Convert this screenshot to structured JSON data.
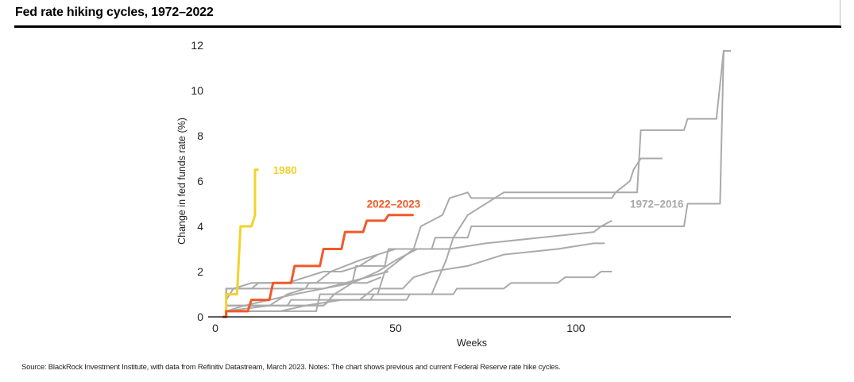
{
  "header": {
    "title": "Fed rate hiking cycles, 1972–2022"
  },
  "footer": {
    "source": "Source: BlackRock Investment Institute, with data from Refinitiv Datastream, March 2023. Notes: The chart shows previous and current Federal Reserve rate hike cycles."
  },
  "colors": {
    "historical": "#aaaaaa",
    "current": "#f05a28",
    "highlight_1980": "#f2d22e",
    "axis": "#000000",
    "tick_text": "#222222"
  },
  "chart_data": {
    "type": "line",
    "xlabel": "Weeks",
    "ylabel": "Change in fed funds rate (%)",
    "xlim": [
      -2,
      143
    ],
    "ylim": [
      0,
      12
    ],
    "x_ticks": [
      0,
      50,
      100
    ],
    "y_ticks": [
      0,
      2,
      4,
      6,
      8,
      10,
      12
    ],
    "grid": false,
    "annotations": [
      {
        "text": "1980",
        "series": "1980",
        "x": 16,
        "y": 6.5
      },
      {
        "text": "2022–2023",
        "series": "2022–2023",
        "x": 42,
        "y": 5.0
      },
      {
        "text": "1972–2016",
        "series": "1972–2016",
        "x": 115,
        "y": 5.0
      }
    ],
    "series": [
      {
        "name": "1980",
        "color_key": "highlight_1980",
        "x": [
          2,
          3,
          3,
          6,
          7,
          10,
          11,
          11,
          12
        ],
        "y": [
          0,
          0,
          1.0,
          1.0,
          4.0,
          4.0,
          4.5,
          6.5,
          6.5
        ]
      },
      {
        "name": "2022–2023",
        "color_key": "current",
        "x": [
          2,
          3,
          3,
          9,
          10,
          15,
          16,
          21,
          22,
          29,
          30,
          35,
          36,
          41,
          42,
          47,
          48,
          55
        ],
        "y": [
          0,
          0,
          0.25,
          0.25,
          0.75,
          0.75,
          1.5,
          1.5,
          2.25,
          2.25,
          3.0,
          3.0,
          3.75,
          3.75,
          4.25,
          4.25,
          4.5,
          4.5
        ]
      },
      {
        "group": "1972–2016",
        "color_key": "historical",
        "x": [
          2,
          3,
          3,
          25,
          26,
          38,
          39,
          47,
          48,
          60,
          61,
          70,
          71,
          130,
          131,
          140,
          141,
          143
        ],
        "y": [
          0,
          0,
          1.25,
          1.25,
          1.5,
          1.5,
          2.25,
          2.25,
          3.0,
          3.0,
          3.5,
          3.5,
          4.0,
          4.0,
          5.0,
          5.0,
          11.75,
          11.75
        ]
      },
      {
        "group": "1972–2016",
        "color_key": "historical",
        "x": [
          2,
          3,
          3,
          20,
          21,
          43,
          44,
          60,
          62,
          64,
          66,
          70,
          80,
          117,
          118,
          130,
          131,
          139,
          141,
          143
        ],
        "y": [
          0,
          0,
          0.5,
          0.5,
          0.75,
          0.75,
          1.0,
          1.0,
          1.75,
          2.5,
          3.5,
          4.5,
          5.5,
          5.5,
          8.25,
          8.25,
          8.75,
          8.75,
          11.75,
          11.75
        ]
      },
      {
        "group": "1972–2016",
        "color_key": "historical",
        "x": [
          2,
          3,
          3,
          28,
          29,
          45,
          47,
          55,
          57,
          63,
          65,
          70,
          71,
          110,
          111,
          115,
          116,
          118,
          122,
          124
        ],
        "y": [
          0,
          0,
          0.25,
          0.25,
          1.0,
          1.0,
          2.0,
          3.0,
          4.0,
          4.5,
          5.25,
          5.5,
          5.25,
          5.25,
          5.5,
          6.0,
          6.5,
          7.0,
          7.0,
          7.0
        ]
      },
      {
        "group": "1972–2016",
        "color_key": "historical",
        "x": [
          2,
          3,
          3,
          30,
          33,
          38,
          45,
          50,
          53,
          56,
          65,
          75,
          90,
          105,
          107,
          110
        ],
        "y": [
          0,
          0,
          0.5,
          0.5,
          1.0,
          1.5,
          2.0,
          2.5,
          2.75,
          3.0,
          3.0,
          3.25,
          3.5,
          3.75,
          4.0,
          4.25
        ]
      },
      {
        "group": "1972–2016",
        "color_key": "historical",
        "x": [
          2,
          3,
          3,
          30,
          32,
          40,
          44,
          52,
          55,
          60,
          70,
          80,
          95,
          105,
          108
        ],
        "y": [
          0,
          0,
          0.5,
          0.5,
          0.75,
          0.75,
          1.25,
          1.25,
          1.75,
          2.0,
          2.25,
          2.75,
          3.0,
          3.25,
          3.25
        ]
      },
      {
        "group": "1972–2016",
        "color_key": "historical",
        "x": [
          2,
          3,
          3,
          10,
          12,
          20,
          25,
          30,
          35,
          40,
          45,
          50
        ],
        "y": [
          0,
          0,
          1.25,
          1.25,
          1.5,
          1.5,
          1.75,
          2.0,
          2.0,
          2.25,
          2.75,
          3.0
        ]
      },
      {
        "group": "1972–2016",
        "color_key": "historical",
        "x": [
          2,
          3,
          3,
          5,
          10,
          20,
          28,
          32,
          36,
          40,
          45
        ],
        "y": [
          0,
          0,
          0.75,
          1.25,
          1.5,
          1.5,
          1.5,
          2.0,
          2.25,
          2.5,
          2.75
        ]
      },
      {
        "group": "1972–2016",
        "color_key": "historical",
        "x": [
          2,
          3,
          3,
          8,
          15,
          22,
          30,
          36,
          42,
          48
        ],
        "y": [
          0,
          0,
          0.25,
          0.5,
          0.75,
          1.0,
          1.25,
          1.5,
          1.75,
          2.0
        ]
      },
      {
        "group": "1972–2016",
        "color_key": "historical",
        "x": [
          2,
          3,
          3,
          18,
          25,
          35,
          47,
          53,
          54,
          66,
          67,
          80,
          82,
          95,
          97,
          105,
          107,
          110
        ],
        "y": [
          0,
          0,
          0.25,
          0.25,
          0.5,
          0.75,
          0.75,
          0.75,
          1.0,
          1.0,
          1.25,
          1.25,
          1.5,
          1.5,
          1.75,
          1.75,
          2.0,
          2.0
        ]
      },
      {
        "group": "1972–2016",
        "color_key": "historical",
        "x": [
          2,
          3,
          3,
          15,
          20,
          25,
          30,
          38,
          42,
          46
        ],
        "y": [
          0,
          0,
          0.25,
          0.5,
          1.0,
          1.25,
          1.25,
          1.5,
          1.5,
          1.75
        ]
      }
    ]
  }
}
